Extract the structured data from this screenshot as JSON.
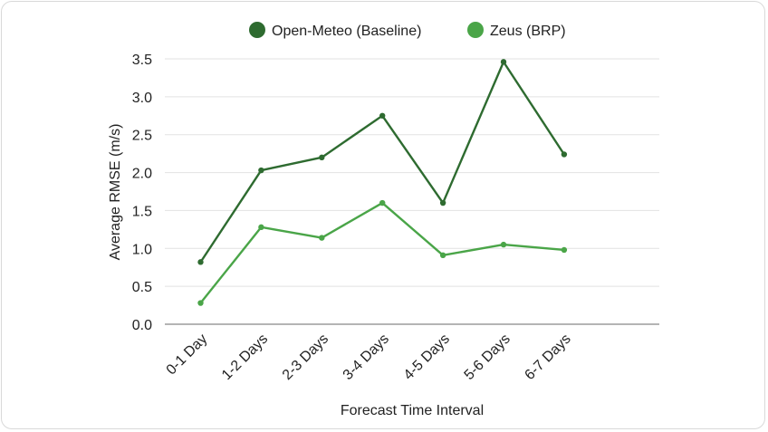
{
  "chart_data": {
    "type": "line",
    "title": "",
    "xlabel": "Forecast Time Interval",
    "ylabel": "Average RMSE (m/s)",
    "ylim": [
      0,
      3.5
    ],
    "yticks": [
      "0.0",
      "0.5",
      "1.0",
      "1.5",
      "2.0",
      "2.5",
      "3.0",
      "3.5"
    ],
    "grid": "horizontal",
    "legend_position": "top-center",
    "categories": [
      "0-1 Day",
      "1-2 Days",
      "2-3 Days",
      "3-4 Days",
      "4-5 Days",
      "5-6 Days",
      "6-7 Days"
    ],
    "series": [
      {
        "name": "Open-Meteo (Baseline)",
        "color": "#2e6b30",
        "values": [
          0.82,
          2.03,
          2.2,
          2.75,
          1.6,
          3.46,
          2.24
        ]
      },
      {
        "name": "Zeus (BRP)",
        "color": "#4aa548",
        "values": [
          0.28,
          1.28,
          1.14,
          1.6,
          0.91,
          1.05,
          0.98
        ]
      }
    ]
  }
}
